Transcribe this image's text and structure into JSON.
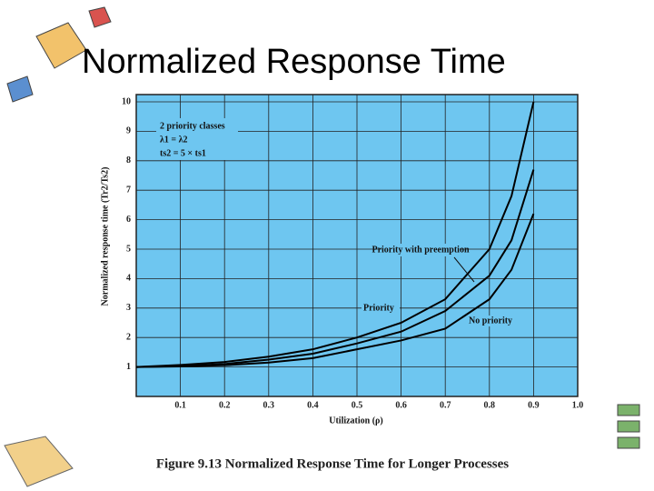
{
  "chart_data": {
    "type": "line",
    "title": "Normalized Response Time",
    "caption": "Figure 9.13 Normalized Response Time for Longer Processes",
    "xlabel": "Utilization (ρ)",
    "ylabel": "Normalized response time (Tr2/Ts2)",
    "x": [
      0,
      0.1,
      0.2,
      0.3,
      0.4,
      0.5,
      0.6,
      0.7,
      0.8,
      0.85,
      0.9
    ],
    "series": [
      {
        "name": "Priority",
        "color": "#000000",
        "values": [
          1.0,
          1.07,
          1.17,
          1.35,
          1.6,
          2.0,
          2.5,
          3.3,
          5.0,
          6.8,
          10.0
        ]
      },
      {
        "name": "Priority with preemption",
        "color": "#000000",
        "values": [
          1.0,
          1.03,
          1.1,
          1.25,
          1.45,
          1.8,
          2.2,
          2.9,
          4.1,
          5.3,
          7.7
        ]
      },
      {
        "name": "No priority",
        "color": "#000000",
        "values": [
          1.0,
          1.02,
          1.06,
          1.15,
          1.3,
          1.6,
          1.9,
          2.3,
          3.3,
          4.3,
          6.2
        ]
      }
    ],
    "legend_lines": [
      "2 priority classes",
      "λ1 = λ2",
      "ts2 = 5 × ts1"
    ],
    "xlim": [
      0,
      1.0
    ],
    "xticks": [
      0.1,
      0.2,
      0.3,
      0.4,
      0.5,
      0.6,
      0.7,
      0.8,
      0.9,
      {
        "value": 1.0,
        "label": "1.0"
      }
    ],
    "ylim": [
      0,
      10
    ],
    "yticks": [
      1,
      2,
      3,
      4,
      5,
      6,
      7,
      8,
      9,
      10
    ],
    "grid": true,
    "plot_color": "#6ec6f0"
  }
}
